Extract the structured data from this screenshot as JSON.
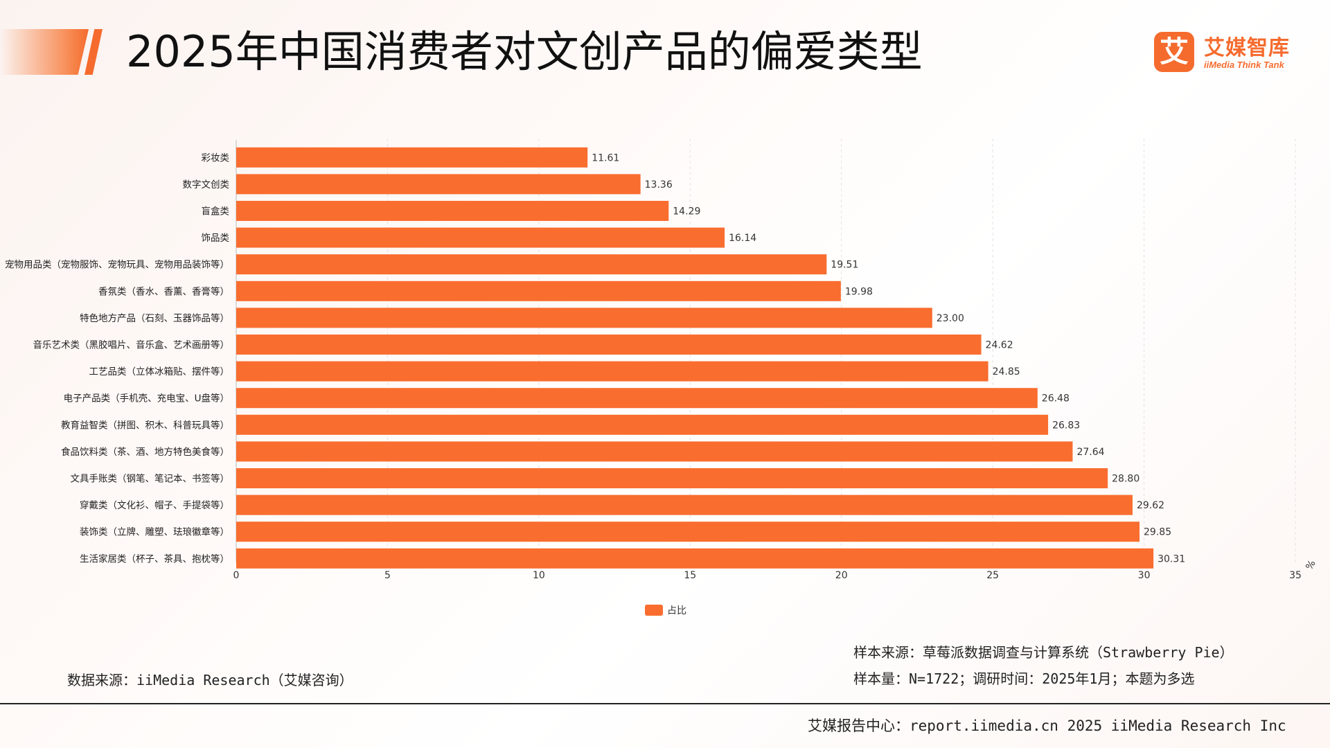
{
  "header": {
    "title": "2025年中国消费者对文创产品的偏爱类型"
  },
  "logo": {
    "mark": "艾",
    "name": "艾媒智库",
    "sub": "iiMedia Think Tank"
  },
  "colors": {
    "accent": "#f56b2e",
    "bar": "#f96d2f",
    "grid": "#e3e3e3"
  },
  "chart_data": {
    "type": "bar",
    "orientation": "horizontal",
    "categories": [
      "彩妆类",
      "数字文创类",
      "盲盒类",
      "饰品类",
      "宠物用品类（宠物服饰、宠物玩具、宠物用品装饰等）",
      "香氛类（香水、香薰、香膏等）",
      "特色地方产品（石刻、玉器饰品等）",
      "音乐艺术类（黑胶唱片、音乐盒、艺术画册等）",
      "工艺品类（立体冰箱贴、摆件等）",
      "电子产品类（手机壳、充电宝、U盘等）",
      "教育益智类（拼图、积木、科普玩具等）",
      "食品饮料类（茶、酒、地方特色美食等）",
      "文具手账类（钢笔、笔记本、书签等）",
      "穿戴类（文化衫、帽子、手提袋等）",
      "装饰类（立牌、雕塑、珐琅徽章等）",
      "生活家居类（杯子、茶具、抱枕等）"
    ],
    "series": [
      {
        "name": "占比",
        "values": [
          11.61,
          13.36,
          14.29,
          16.14,
          19.51,
          19.98,
          23.0,
          24.62,
          24.85,
          26.48,
          26.83,
          27.64,
          28.8,
          29.62,
          29.85,
          30.31
        ],
        "labels": [
          "11.61",
          "13.36",
          "14.29",
          "16.14",
          "19.51",
          "19.98",
          "23.00",
          "24.62",
          "24.85",
          "26.48",
          "26.83",
          "27.64",
          "28.80",
          "29.62",
          "29.85",
          "30.31"
        ]
      }
    ],
    "xlim": [
      0,
      35
    ],
    "xticks": [
      "0",
      "5",
      "10",
      "15",
      "20",
      "25",
      "30",
      "35"
    ],
    "unit": "%",
    "grid": "vertical dashed",
    "legend": "bottom-center"
  },
  "footnotes": {
    "data_source": "数据来源：iiMedia Research（艾媒咨询）",
    "sample_source": "样本来源：草莓派数据调查与计算系统（Strawberry Pie）",
    "sample_size": "样本量：N=1722；调研时间：2025年1月；本题为多选"
  },
  "footer": {
    "text": "艾媒报告中心：report.iimedia.cn 2025 iiMedia Research Inc"
  }
}
